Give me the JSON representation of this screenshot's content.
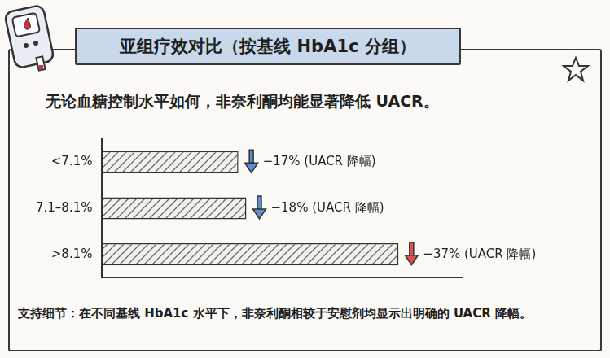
{
  "chart_data": {
    "type": "bar",
    "orientation": "horizontal",
    "title": "亚组疗效对比（按基线 HbA1c 分组）",
    "subtitle": "无论血糖控制水平如何，非奈利酮均能显著降低 UACR。",
    "annotations": [
      "支持细节：在不同基线 HbA1c 水平下，非奈利酮相较于安慰剂均显示出明确的 UACR 降幅。"
    ],
    "categories": [
      "<7.1%",
      "7.1–8.1%",
      ">8.1%"
    ],
    "values": [
      -17,
      -18,
      -37
    ],
    "value_labels": [
      "−17% (UACR 降幅)",
      "−18% (UACR 降幅)",
      "−37% (UACR 降幅)"
    ],
    "data_labels": true,
    "color": "#6a6a6a",
    "xlim": [
      0,
      -45
    ],
    "tick_labels": "y",
    "grid": false
  }
}
